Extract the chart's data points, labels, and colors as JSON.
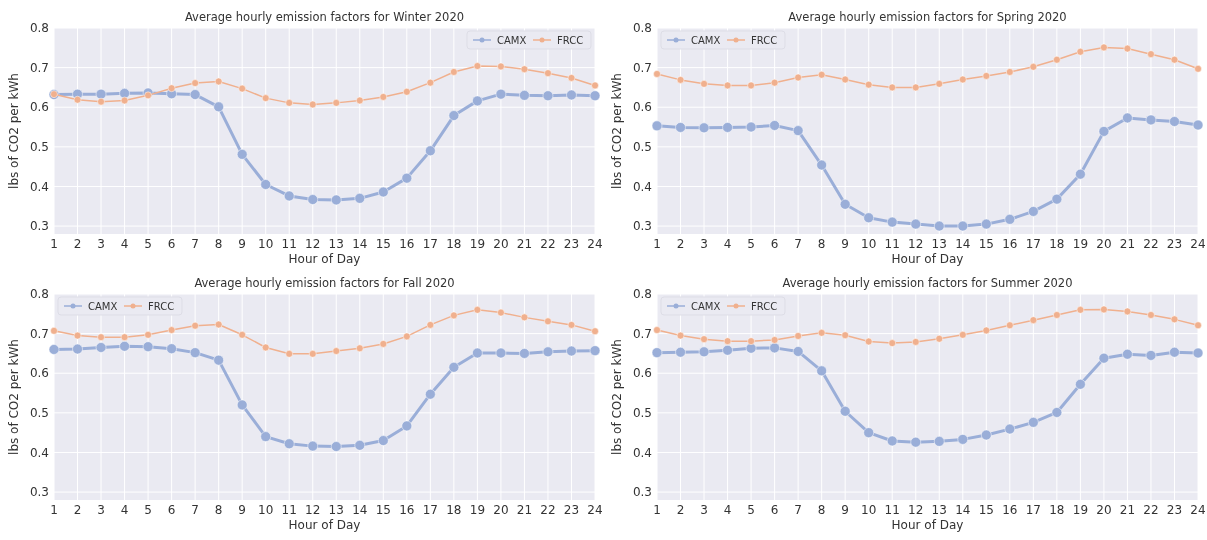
{
  "chart_data": [
    {
      "type": "line",
      "title": "Average hourly emission factors for Winter 2020",
      "xlabel": "Hour of Day",
      "ylabel": "lbs of CO2 per kWh",
      "x": [
        1,
        2,
        3,
        4,
        5,
        6,
        7,
        8,
        9,
        10,
        11,
        12,
        13,
        14,
        15,
        16,
        17,
        18,
        19,
        20,
        21,
        22,
        23,
        24
      ],
      "xlim": [
        1,
        24
      ],
      "xticks": [
        1,
        2,
        3,
        4,
        5,
        6,
        7,
        8,
        9,
        10,
        11,
        12,
        13,
        14,
        15,
        16,
        17,
        18,
        19,
        20,
        21,
        22,
        23,
        24
      ],
      "ylim": [
        0.28,
        0.8
      ],
      "yticks": [
        0.3,
        0.4,
        0.5,
        0.6,
        0.7,
        0.8
      ],
      "grid": true,
      "legend": "top right",
      "marker": "circle",
      "series": [
        {
          "name": "CAMX",
          "color": "#9aaed8",
          "values": [
            0.632,
            0.633,
            0.633,
            0.635,
            0.636,
            0.634,
            0.632,
            0.601,
            0.481,
            0.405,
            0.376,
            0.367,
            0.366,
            0.37,
            0.386,
            0.421,
            0.49,
            0.579,
            0.616,
            0.633,
            0.63,
            0.629,
            0.631,
            0.629
          ]
        },
        {
          "name": "FRCC",
          "color": "#f0b08e",
          "values": [
            0.633,
            0.619,
            0.614,
            0.617,
            0.63,
            0.648,
            0.661,
            0.665,
            0.647,
            0.623,
            0.611,
            0.607,
            0.611,
            0.617,
            0.626,
            0.639,
            0.662,
            0.689,
            0.704,
            0.703,
            0.696,
            0.686,
            0.674,
            0.655
          ]
        }
      ]
    },
    {
      "type": "line",
      "title": "Average hourly emission factors for Spring 2020",
      "xlabel": "Hour of Day",
      "ylabel": "lbs of CO2 per kWh",
      "x": [
        1,
        2,
        3,
        4,
        5,
        6,
        7,
        8,
        9,
        10,
        11,
        12,
        13,
        14,
        15,
        16,
        17,
        18,
        19,
        20,
        21,
        22,
        23,
        24
      ],
      "xlim": [
        1,
        24
      ],
      "xticks": [
        1,
        2,
        3,
        4,
        5,
        6,
        7,
        8,
        9,
        10,
        11,
        12,
        13,
        14,
        15,
        16,
        17,
        18,
        19,
        20,
        21,
        22,
        23,
        24
      ],
      "ylim": [
        0.28,
        0.8
      ],
      "yticks": [
        0.3,
        0.4,
        0.5,
        0.6,
        0.7,
        0.8
      ],
      "grid": true,
      "legend": "top left",
      "marker": "circle",
      "series": [
        {
          "name": "CAMX",
          "color": "#9aaed8",
          "values": [
            0.553,
            0.549,
            0.548,
            0.549,
            0.55,
            0.554,
            0.541,
            0.454,
            0.355,
            0.321,
            0.31,
            0.305,
            0.3,
            0.3,
            0.305,
            0.317,
            0.337,
            0.368,
            0.431,
            0.539,
            0.573,
            0.568,
            0.564,
            0.555
          ]
        },
        {
          "name": "FRCC",
          "color": "#f0b08e",
          "values": [
            0.684,
            0.669,
            0.659,
            0.655,
            0.655,
            0.662,
            0.675,
            0.682,
            0.67,
            0.657,
            0.65,
            0.65,
            0.659,
            0.67,
            0.679,
            0.689,
            0.702,
            0.72,
            0.74,
            0.751,
            0.748,
            0.734,
            0.72,
            0.697
          ]
        }
      ]
    },
    {
      "type": "line",
      "title": "Average hourly emission factors for Fall 2020",
      "xlabel": "Hour of Day",
      "ylabel": "lbs of CO2 per kWh",
      "x": [
        1,
        2,
        3,
        4,
        5,
        6,
        7,
        8,
        9,
        10,
        11,
        12,
        13,
        14,
        15,
        16,
        17,
        18,
        19,
        20,
        21,
        22,
        23,
        24
      ],
      "xlim": [
        1,
        24
      ],
      "xticks": [
        1,
        2,
        3,
        4,
        5,
        6,
        7,
        8,
        9,
        10,
        11,
        12,
        13,
        14,
        15,
        16,
        17,
        18,
        19,
        20,
        21,
        22,
        23,
        24
      ],
      "ylim": [
        0.28,
        0.8
      ],
      "yticks": [
        0.3,
        0.4,
        0.5,
        0.6,
        0.7,
        0.8
      ],
      "grid": true,
      "legend": "top left",
      "marker": "circle",
      "series": [
        {
          "name": "CAMX",
          "color": "#9aaed8",
          "values": [
            0.66,
            0.661,
            0.665,
            0.668,
            0.667,
            0.662,
            0.652,
            0.633,
            0.52,
            0.44,
            0.422,
            0.416,
            0.415,
            0.418,
            0.43,
            0.467,
            0.547,
            0.615,
            0.651,
            0.651,
            0.65,
            0.654,
            0.656,
            0.657
          ]
        },
        {
          "name": "FRCC",
          "color": "#f0b08e",
          "values": [
            0.707,
            0.695,
            0.691,
            0.691,
            0.697,
            0.709,
            0.72,
            0.723,
            0.697,
            0.665,
            0.649,
            0.649,
            0.656,
            0.663,
            0.674,
            0.693,
            0.722,
            0.746,
            0.76,
            0.753,
            0.741,
            0.731,
            0.722,
            0.706
          ]
        }
      ]
    },
    {
      "type": "line",
      "title": "Average hourly emission factors for Summer 2020",
      "xlabel": "Hour of Day",
      "ylabel": "lbs of CO2 per kWh",
      "x": [
        1,
        2,
        3,
        4,
        5,
        6,
        7,
        8,
        9,
        10,
        11,
        12,
        13,
        14,
        15,
        16,
        17,
        18,
        19,
        20,
        21,
        22,
        23,
        24
      ],
      "xlim": [
        1,
        24
      ],
      "xticks": [
        1,
        2,
        3,
        4,
        5,
        6,
        7,
        8,
        9,
        10,
        11,
        12,
        13,
        14,
        15,
        16,
        17,
        18,
        19,
        20,
        21,
        22,
        23,
        24
      ],
      "ylim": [
        0.28,
        0.8
      ],
      "yticks": [
        0.3,
        0.4,
        0.5,
        0.6,
        0.7,
        0.8
      ],
      "grid": true,
      "legend": "top left",
      "marker": "circle",
      "series": [
        {
          "name": "CAMX",
          "color": "#9aaed8",
          "values": [
            0.652,
            0.653,
            0.654,
            0.658,
            0.663,
            0.664,
            0.655,
            0.606,
            0.504,
            0.45,
            0.429,
            0.426,
            0.428,
            0.433,
            0.444,
            0.459,
            0.476,
            0.501,
            0.572,
            0.638,
            0.648,
            0.645,
            0.653,
            0.651
          ]
        },
        {
          "name": "FRCC",
          "color": "#f0b08e",
          "values": [
            0.709,
            0.695,
            0.686,
            0.681,
            0.681,
            0.684,
            0.694,
            0.702,
            0.696,
            0.68,
            0.676,
            0.679,
            0.687,
            0.697,
            0.708,
            0.721,
            0.734,
            0.747,
            0.76,
            0.761,
            0.756,
            0.747,
            0.736,
            0.721
          ]
        }
      ]
    }
  ]
}
